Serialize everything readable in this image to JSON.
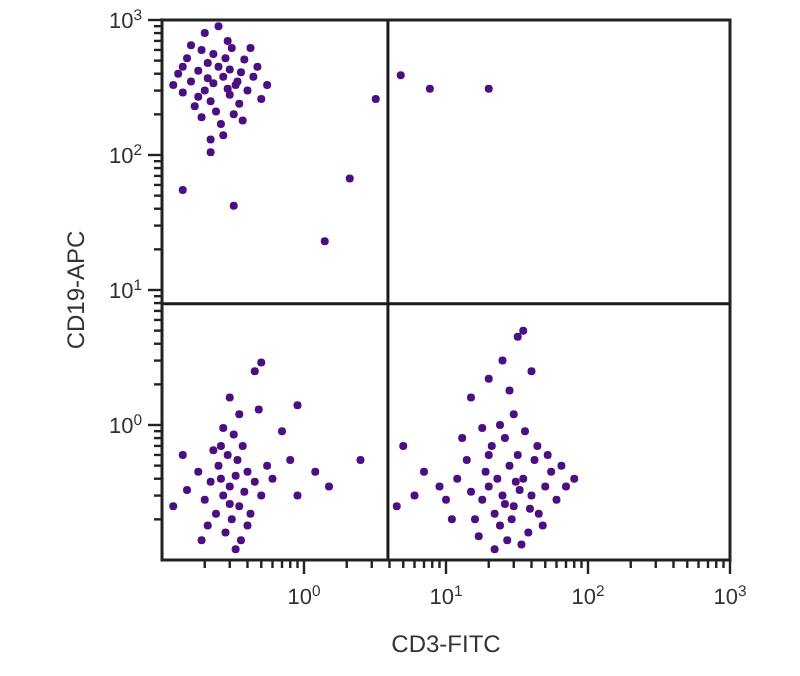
{
  "chart_data": {
    "type": "scatter",
    "xlabel": "CD3-FITC",
    "ylabel": "CD19-APC",
    "log": "xy",
    "xlim": [
      0.1,
      1000
    ],
    "ylim": [
      0.1,
      1000
    ],
    "xticks": [
      {
        "value": 0.2,
        "label": null
      },
      {
        "value": 0.3,
        "label": null
      },
      {
        "value": 0.4,
        "label": null
      },
      {
        "value": 0.5,
        "label": null
      },
      {
        "value": 0.6,
        "label": null
      },
      {
        "value": 0.7,
        "label": null
      },
      {
        "value": 0.8,
        "label": null
      },
      {
        "value": 0.9,
        "label": null
      },
      {
        "value": 1,
        "label": "10$^{0}$"
      },
      {
        "value": 2,
        "label": null
      },
      {
        "value": 3,
        "label": null
      },
      {
        "value": 4,
        "label": null
      },
      {
        "value": 5,
        "label": null
      },
      {
        "value": 6,
        "label": null
      },
      {
        "value": 7,
        "label": null
      },
      {
        "value": 8,
        "label": null
      },
      {
        "value": 9,
        "label": null
      },
      {
        "value": 10,
        "label": "10$^{1}$"
      },
      {
        "value": 20,
        "label": null
      },
      {
        "value": 30,
        "label": null
      },
      {
        "value": 40,
        "label": null
      },
      {
        "value": 50,
        "label": null
      },
      {
        "value": 60,
        "label": null
      },
      {
        "value": 70,
        "label": null
      },
      {
        "value": 80,
        "label": null
      },
      {
        "value": 90,
        "label": null
      },
      {
        "value": 100,
        "label": "10$^{2}$"
      },
      {
        "value": 200,
        "label": null
      },
      {
        "value": 300,
        "label": null
      },
      {
        "value": 400,
        "label": null
      },
      {
        "value": 500,
        "label": null
      },
      {
        "value": 600,
        "label": null
      },
      {
        "value": 700,
        "label": null
      },
      {
        "value": 800,
        "label": null
      },
      {
        "value": 900,
        "label": null
      },
      {
        "value": 1000,
        "label": "10$^{3}$"
      }
    ],
    "yticks": [
      {
        "value": 0.2,
        "label": null
      },
      {
        "value": 0.3,
        "label": null
      },
      {
        "value": 0.4,
        "label": null
      },
      {
        "value": 0.5,
        "label": null
      },
      {
        "value": 0.6,
        "label": null
      },
      {
        "value": 0.7,
        "label": null
      },
      {
        "value": 0.8,
        "label": null
      },
      {
        "value": 0.9,
        "label": null
      },
      {
        "value": 1,
        "label": "10$^{0}$"
      },
      {
        "value": 2,
        "label": null
      },
      {
        "value": 3,
        "label": null
      },
      {
        "value": 4,
        "label": null
      },
      {
        "value": 5,
        "label": null
      },
      {
        "value": 6,
        "label": null
      },
      {
        "value": 7,
        "label": null
      },
      {
        "value": 8,
        "label": null
      },
      {
        "value": 9,
        "label": null
      },
      {
        "value": 10,
        "label": "10$^{1}$"
      },
      {
        "value": 20,
        "label": null
      },
      {
        "value": 30,
        "label": null
      },
      {
        "value": 40,
        "label": null
      },
      {
        "value": 50,
        "label": null
      },
      {
        "value": 60,
        "label": null
      },
      {
        "value": 70,
        "label": null
      },
      {
        "value": 80,
        "label": null
      },
      {
        "value": 90,
        "label": null
      },
      {
        "value": 100,
        "label": "10$^{2}$"
      },
      {
        "value": 200,
        "label": null
      },
      {
        "value": 300,
        "label": null
      },
      {
        "value": 400,
        "label": null
      },
      {
        "value": 500,
        "label": null
      },
      {
        "value": 600,
        "label": null
      },
      {
        "value": 700,
        "label": null
      },
      {
        "value": 800,
        "label": null
      },
      {
        "value": 900,
        "label": null
      },
      {
        "value": 1000,
        "label": "10$^{3}$"
      }
    ],
    "grid": false,
    "marker": "circle",
    "ref_lines": [
      {
        "axis": "x",
        "value": 3.9,
        "color": "#1a1a1a"
      },
      {
        "axis": "y",
        "value": 7.9,
        "color": "#1a1a1a"
      }
    ],
    "series": [
      {
        "color": "#4b0f82",
        "x": [
          0.23,
          0.2,
          0.27,
          0.18,
          0.3,
          0.25,
          0.16,
          0.33,
          0.22,
          0.28,
          0.14,
          0.36,
          0.19,
          0.24,
          0.31,
          0.13,
          0.4,
          0.21,
          0.26,
          0.17,
          0.35,
          0.29,
          0.15,
          0.44,
          0.2,
          0.38,
          0.12,
          0.27,
          0.5,
          0.23,
          0.32,
          0.19,
          0.42,
          0.25,
          0.3,
          0.16,
          0.47,
          0.21,
          0.34,
          0.18,
          0.55,
          0.22,
          0.29,
          0.14,
          0.37,
          0.22,
          0.14,
          0.32,
          2.1,
          1.4,
          3.2,
          4.8,
          7.7,
          20,
          0.3,
          0.27,
          0.33,
          0.25,
          0.35,
          0.29,
          0.22,
          0.38,
          0.31,
          0.26,
          0.4,
          0.2,
          0.34,
          0.28,
          0.45,
          0.24,
          0.32,
          0.18,
          0.36,
          0.5,
          0.23,
          0.42,
          0.3,
          0.15,
          0.27,
          0.55,
          0.37,
          0.21,
          0.33,
          0.6,
          0.12,
          0.8,
          1.2,
          0.9,
          0.7,
          0.48,
          0.35,
          1.5,
          0.14,
          0.26,
          0.4,
          0.19,
          0.45,
          0.5,
          0.3,
          0.9,
          2.5,
          25,
          20,
          30,
          18,
          35,
          22,
          28,
          15,
          40,
          24,
          32,
          12,
          45,
          19,
          27,
          50,
          16,
          38,
          21,
          33,
          10,
          55,
          26,
          14,
          42,
          23,
          29,
          60,
          9,
          36,
          17,
          48,
          31,
          20,
          11,
          65,
          26,
          44,
          13,
          34,
          70,
          7,
          24,
          39,
          18,
          52,
          6,
          30,
          22,
          80,
          28,
          20,
          32,
          35,
          25,
          40,
          15,
          5,
          4.5
        ],
        "values": [
          340,
          300,
          380,
          420,
          280,
          450,
          350,
          330,
          250,
          520,
          290,
          410,
          600,
          210,
          620,
          400,
          300,
          480,
          170,
          230,
          240,
          700,
          520,
          380,
          800,
          510,
          330,
          140,
          260,
          560,
          200,
          190,
          620,
          900,
          430,
          650,
          450,
          370,
          350,
          270,
          330,
          130,
          310,
          450,
          180,
          105,
          55,
          42,
          67,
          23,
          260,
          390,
          310,
          310,
          0.35,
          0.3,
          0.42,
          0.5,
          0.25,
          0.6,
          0.38,
          0.32,
          0.2,
          0.7,
          0.45,
          0.28,
          0.55,
          0.16,
          0.38,
          0.22,
          0.85,
          0.45,
          0.14,
          0.3,
          0.65,
          0.22,
          0.26,
          0.33,
          0.95,
          0.5,
          0.7,
          0.18,
          0.12,
          0.4,
          0.25,
          0.55,
          0.45,
          0.3,
          0.9,
          1.3,
          1.2,
          0.35,
          0.6,
          0.4,
          0.18,
          0.14,
          2.5,
          2.9,
          1.6,
          1.4,
          0.55,
          0.3,
          0.35,
          0.25,
          0.28,
          0.4,
          0.22,
          0.5,
          0.32,
          0.3,
          0.18,
          0.6,
          0.4,
          0.22,
          0.45,
          0.14,
          0.35,
          0.2,
          0.16,
          0.7,
          0.33,
          0.28,
          0.45,
          0.8,
          0.55,
          0.55,
          0.4,
          0.2,
          0.28,
          0.35,
          0.9,
          0.15,
          0.18,
          0.38,
          0.6,
          0.2,
          0.5,
          0.26,
          0.7,
          0.8,
          0.13,
          0.35,
          0.45,
          1.0,
          0.24,
          0.95,
          0.6,
          0.3,
          1.2,
          0.12,
          0.4,
          1.8,
          2.2,
          4.5,
          5,
          3,
          2.5,
          1.6,
          0.7,
          0.25
        ]
      }
    ]
  }
}
